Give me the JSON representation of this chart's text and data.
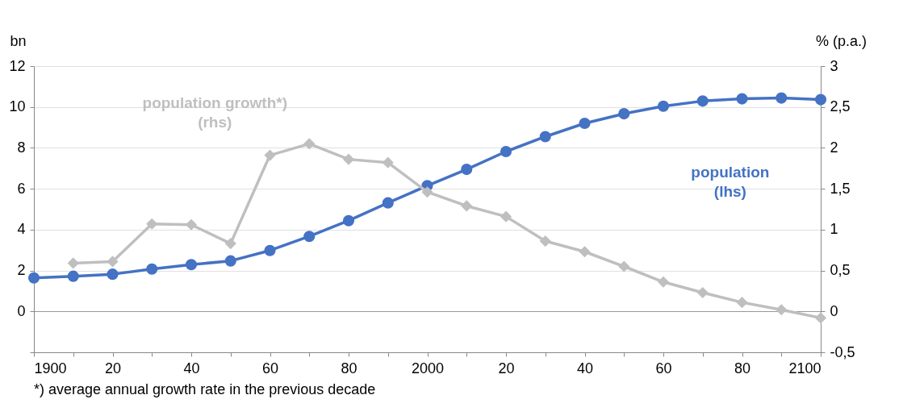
{
  "chart_data": {
    "type": "line",
    "x": [
      1900,
      1910,
      1920,
      1930,
      1940,
      1950,
      1960,
      1970,
      1980,
      1990,
      2000,
      2010,
      2020,
      2030,
      2040,
      2050,
      2060,
      2070,
      2080,
      2090,
      2100
    ],
    "xlim": [
      1900,
      2100
    ],
    "xticks": [
      1900,
      {
        "value": 1910,
        "label": null
      },
      {
        "value": 1920,
        "label": "20"
      },
      {
        "value": 1930,
        "label": null
      },
      {
        "value": 1940,
        "label": "40"
      },
      {
        "value": 1950,
        "label": null
      },
      {
        "value": 1960,
        "label": "60"
      },
      {
        "value": 1970,
        "label": null
      },
      {
        "value": 1980,
        "label": "80"
      },
      {
        "value": 1990,
        "label": null
      },
      2000,
      {
        "value": 2010,
        "label": null
      },
      {
        "value": 2020,
        "label": "20"
      },
      {
        "value": 2030,
        "label": null
      },
      {
        "value": 2040,
        "label": "40"
      },
      {
        "value": 2050,
        "label": null
      },
      {
        "value": 2060,
        "label": "60"
      },
      {
        "value": 2070,
        "label": null
      },
      {
        "value": 2080,
        "label": "80"
      },
      {
        "value": 2090,
        "label": null
      },
      2100
    ],
    "ylabel": "bn",
    "y2label": "% (p.a.)",
    "ylim": [
      -2,
      12
    ],
    "yticks": [
      {
        "value": -2,
        "label": null
      },
      0,
      2,
      4,
      6,
      8,
      10,
      12
    ],
    "y2lim": [
      -0.5,
      3
    ],
    "y2ticks": [
      {
        "value": -0.5,
        "label": "-0,5"
      },
      0,
      {
        "value": 0.5,
        "label": "0,5"
      },
      1,
      {
        "value": 1.5,
        "label": "1,5"
      },
      2,
      {
        "value": 2.5,
        "label": "2,5"
      },
      3
    ],
    "grid": "y",
    "legend": false,
    "series": [
      {
        "name": "population growth*)\n(rhs)",
        "color": "#bfbfbf",
        "marker": "diamond",
        "axis": "y2",
        "values": [
          null,
          0.59,
          0.61,
          1.07,
          1.06,
          0.83,
          1.91,
          2.05,
          1.86,
          1.82,
          1.46,
          1.29,
          1.16,
          0.86,
          0.73,
          0.55,
          0.36,
          0.23,
          0.11,
          0.02,
          -0.08
        ]
      },
      {
        "name": "population\n(lhs)",
        "color": "#4472c4",
        "marker": "circle",
        "values": [
          1.64,
          1.72,
          1.82,
          2.07,
          2.29,
          2.47,
          2.98,
          3.67,
          4.44,
          5.31,
          6.15,
          6.95,
          7.82,
          8.55,
          9.2,
          9.67,
          10.04,
          10.29,
          10.4,
          10.44,
          10.36
        ]
      }
    ],
    "annotations": [
      "*) average annual growth rate in the previous decade"
    ]
  }
}
